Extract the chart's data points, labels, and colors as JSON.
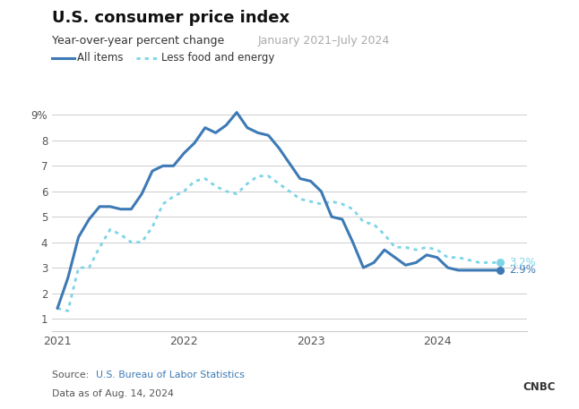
{
  "title": "U.S. consumer price index",
  "subtitle_plain": "Year-over-year percent change ",
  "subtitle_colored": "January 2021–July 2024",
  "legend_line": "All items",
  "legend_dot": "Less food and energy",
  "source_plain": "Source: ",
  "source_link": "U.S. Bureau of Labor Statistics",
  "source_date": "Data as of Aug. 14, 2024",
  "line_color": "#3d7ab5",
  "dot_color": "#7dd4e8",
  "end_label_line": "2.9%",
  "end_label_dot": "3.2%",
  "ylim": [
    0.5,
    9.5
  ],
  "yticks": [
    1,
    2,
    3,
    4,
    5,
    6,
    7,
    8,
    9
  ],
  "background": "#ffffff",
  "all_items_x": [
    0,
    1,
    2,
    3,
    4,
    5,
    6,
    7,
    8,
    9,
    10,
    11,
    12,
    13,
    14,
    15,
    16,
    17,
    18,
    19,
    20,
    21,
    22,
    23,
    24,
    25,
    26,
    27,
    28,
    29,
    30,
    31,
    32,
    33,
    34,
    35,
    36,
    37,
    38,
    39,
    40,
    41,
    42
  ],
  "all_items_y": [
    1.4,
    2.6,
    4.2,
    4.9,
    5.4,
    5.4,
    5.3,
    5.3,
    5.9,
    6.8,
    7.0,
    7.0,
    7.5,
    7.9,
    8.5,
    8.3,
    8.6,
    9.1,
    8.5,
    8.3,
    8.2,
    7.7,
    7.1,
    6.5,
    6.4,
    6.0,
    5.0,
    4.9,
    4.0,
    3.0,
    3.2,
    3.7,
    3.4,
    3.1,
    3.2,
    3.5,
    3.4,
    3.0,
    2.9,
    2.9,
    2.9,
    2.9,
    2.9
  ],
  "core_x": [
    0,
    1,
    2,
    3,
    4,
    5,
    6,
    7,
    8,
    9,
    10,
    11,
    12,
    13,
    14,
    15,
    16,
    17,
    18,
    19,
    20,
    21,
    22,
    23,
    24,
    25,
    26,
    27,
    28,
    29,
    30,
    31,
    32,
    33,
    34,
    35,
    36,
    37,
    38,
    39,
    40,
    41,
    42
  ],
  "core_y": [
    1.4,
    1.3,
    3.0,
    3.0,
    3.8,
    4.5,
    4.3,
    4.0,
    4.0,
    4.6,
    5.5,
    5.8,
    6.0,
    6.4,
    6.5,
    6.2,
    6.0,
    5.9,
    6.3,
    6.6,
    6.6,
    6.3,
    6.0,
    5.7,
    5.6,
    5.5,
    5.6,
    5.5,
    5.3,
    4.8,
    4.7,
    4.3,
    3.8,
    3.8,
    3.7,
    3.8,
    3.7,
    3.4,
    3.4,
    3.3,
    3.2,
    3.2,
    3.2
  ]
}
